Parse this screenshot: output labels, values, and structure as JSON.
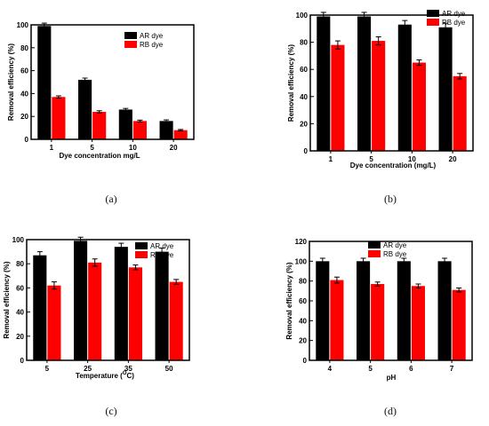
{
  "colors": {
    "ar": "#000000",
    "rb": "#ff0000",
    "frame": "#000000"
  },
  "panel_labels": [
    "(a)",
    "(b)",
    "(c)",
    "(d)"
  ],
  "chart_data": [
    {
      "type": "bar",
      "panel": "(a)",
      "categories": [
        "1",
        "5",
        "10",
        "20"
      ],
      "series": [
        {
          "name": "AR dye",
          "values": [
            99,
            52,
            26,
            16
          ],
          "errors": [
            2.5,
            1.5,
            1,
            1
          ]
        },
        {
          "name": "RB dye",
          "values": [
            37,
            24,
            16,
            8
          ],
          "errors": [
            1,
            1,
            0.8,
            0.6
          ]
        }
      ],
      "xlabel": "Dye concentration mg/L",
      "ylabel": "Removal efficiency (%)",
      "ylim": [
        0,
        100
      ],
      "yticks": [
        0,
        20,
        40,
        60,
        80,
        100
      ],
      "legend": "top-right",
      "grid": false
    },
    {
      "type": "bar",
      "panel": "(b)",
      "categories": [
        "1",
        "5",
        "10",
        "20"
      ],
      "series": [
        {
          "name": "AR dye",
          "values": [
            99,
            99,
            93,
            91
          ],
          "errors": [
            3,
            3,
            3,
            3
          ]
        },
        {
          "name": "RB dye",
          "values": [
            78,
            81,
            65,
            55
          ],
          "errors": [
            3,
            3,
            2,
            2
          ]
        }
      ],
      "xlabel": "Dye concentration (mg/L)",
      "ylabel": "Removal efficiency (%)",
      "ylim": [
        0,
        100
      ],
      "yticks": [
        0,
        20,
        40,
        60,
        80,
        100
      ],
      "legend": "top-right",
      "grid": false
    },
    {
      "type": "bar",
      "panel": "(c)",
      "categories": [
        "5",
        "25",
        "35",
        "50"
      ],
      "series": [
        {
          "name": "AR dye",
          "values": [
            87,
            99,
            94,
            90
          ],
          "errors": [
            3,
            3,
            3,
            3
          ]
        },
        {
          "name": "RB dye",
          "values": [
            62,
            81,
            77,
            65
          ],
          "errors": [
            3,
            3,
            2,
            2
          ]
        }
      ],
      "xlabel": "Temperature (",
      "xlabel_sup": "O",
      "xlabel_end": "C)",
      "ylabel": "Removal efficiency (%)",
      "ylim": [
        0,
        100
      ],
      "yticks": [
        0,
        20,
        40,
        60,
        80,
        100
      ],
      "legend": "top-right",
      "grid": false
    },
    {
      "type": "bar",
      "panel": "(d)",
      "categories": [
        "4",
        "5",
        "6",
        "7"
      ],
      "series": [
        {
          "name": "AR dye",
          "values": [
            100,
            100,
            100,
            100
          ],
          "errors": [
            3,
            3,
            3,
            3
          ]
        },
        {
          "name": "RB dye",
          "values": [
            81,
            77,
            75,
            71
          ],
          "errors": [
            3,
            2,
            2,
            2
          ]
        }
      ],
      "xlabel": "pH",
      "ylabel": "Removal efficiency (%)",
      "ylim": [
        0,
        120
      ],
      "yticks": [
        0,
        20,
        40,
        60,
        80,
        100,
        120
      ],
      "legend": "top-right",
      "grid": false
    }
  ]
}
